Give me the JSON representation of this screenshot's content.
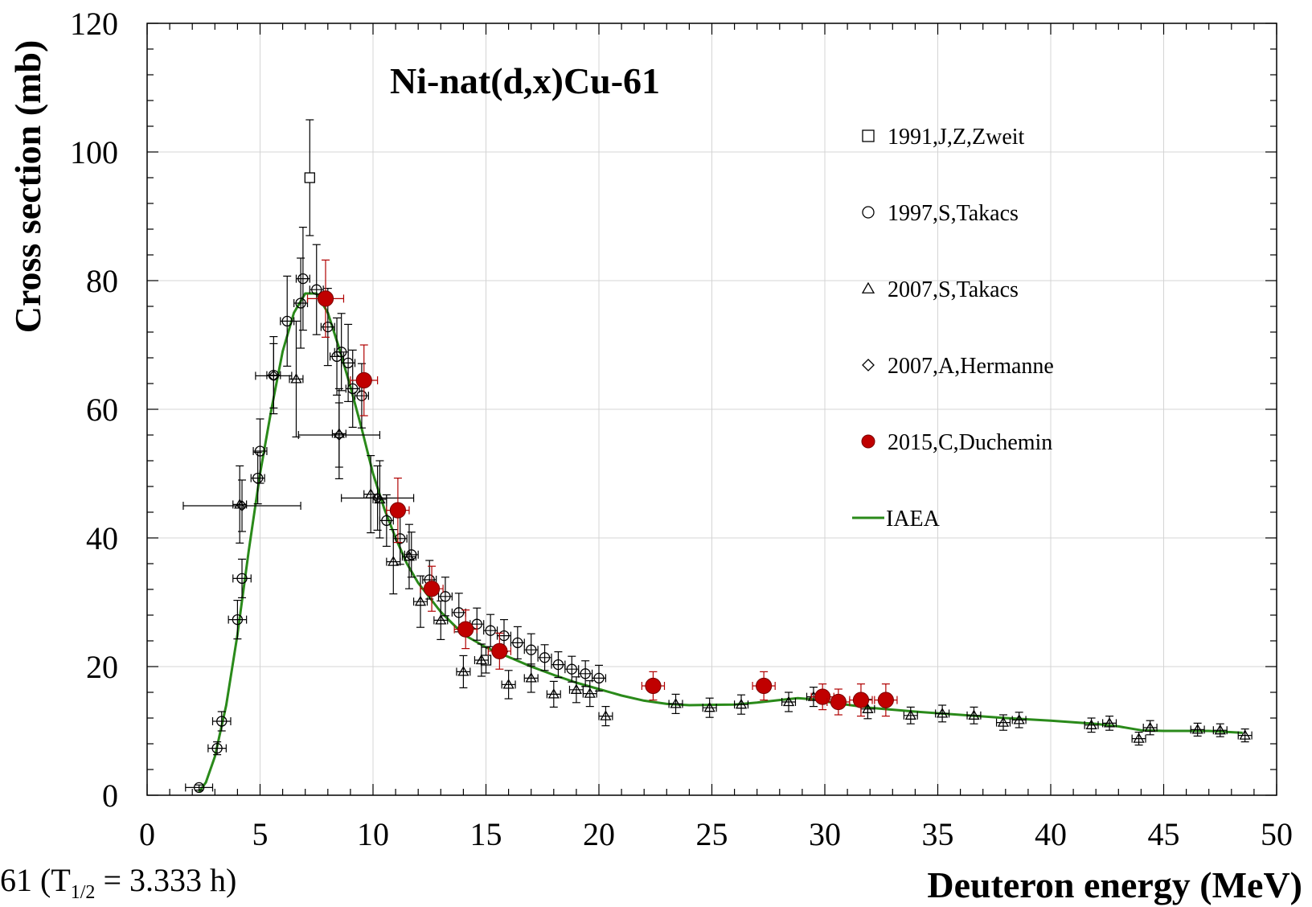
{
  "chart_data": {
    "type": "scatter",
    "title": "Ni-nat(d,x)Cu-61",
    "xlabel": "Deuteron energy (MeV)",
    "ylabel": "Cross section (mb)",
    "xlim": [
      0,
      50
    ],
    "ylim": [
      0,
      120
    ],
    "xticks": [
      "0",
      "5",
      "10",
      "15",
      "20",
      "25",
      "30",
      "35",
      "40",
      "45",
      "50"
    ],
    "yticks": [
      "0",
      "20",
      "40",
      "60",
      "80",
      "100",
      "120"
    ],
    "grid": true,
    "legend_position": "top-right",
    "series": [
      {
        "name": "1991,J,Z,Zweit",
        "marker": "square",
        "color": "#000000",
        "points": [
          {
            "x": 7.2,
            "y": 96,
            "yerr": 9
          },
          {
            "x": 15.0,
            "y": 21,
            "yerr": 2
          }
        ]
      },
      {
        "name": "1997,S,Takacs",
        "marker": "circle",
        "color": "#000000",
        "points": [
          {
            "x": 2.3,
            "y": 1.2,
            "xerr": 0.6,
            "yerr": 0.4
          },
          {
            "x": 3.1,
            "y": 7.3,
            "xerr": 0.4,
            "yerr": 1
          },
          {
            "x": 3.3,
            "y": 11.5,
            "xerr": 0.4,
            "yerr": 1.5
          },
          {
            "x": 4.0,
            "y": 27.3,
            "xerr": 0.4,
            "yerr": 3
          },
          {
            "x": 4.2,
            "y": 33.7,
            "xerr": 0.4,
            "yerr": 3
          },
          {
            "x": 4.9,
            "y": 49.3,
            "xerr": 0.3,
            "yerr": 4
          },
          {
            "x": 5.0,
            "y": 53.5,
            "xerr": 0.3,
            "yerr": 5
          },
          {
            "x": 5.6,
            "y": 65.3,
            "xerr": 0.3,
            "yerr": 6
          },
          {
            "x": 6.2,
            "y": 73.7,
            "xerr": 0.3,
            "yerr": 7
          },
          {
            "x": 6.8,
            "y": 76.5,
            "xerr": 0.3,
            "yerr": 7
          },
          {
            "x": 6.9,
            "y": 80.3,
            "xerr": 0.3,
            "yerr": 8
          },
          {
            "x": 7.5,
            "y": 78.6,
            "xerr": 0.3,
            "yerr": 7
          },
          {
            "x": 8.0,
            "y": 72.8,
            "xerr": 0.3,
            "yerr": 6
          },
          {
            "x": 8.4,
            "y": 68.2,
            "xerr": 0.3,
            "yerr": 6
          },
          {
            "x": 8.6,
            "y": 68.9,
            "xerr": 0.3,
            "yerr": 6
          },
          {
            "x": 8.9,
            "y": 67.2,
            "xerr": 0.3,
            "yerr": 6
          },
          {
            "x": 9.1,
            "y": 63.2,
            "xerr": 0.3,
            "yerr": 6
          },
          {
            "x": 9.5,
            "y": 62.1,
            "xerr": 0.3,
            "yerr": 5
          },
          {
            "x": 10.6,
            "y": 42.7,
            "xerr": 0.3,
            "yerr": 4
          },
          {
            "x": 11.2,
            "y": 39.9,
            "xerr": 0.3,
            "yerr": 4
          },
          {
            "x": 11.7,
            "y": 37.4,
            "xerr": 0.3,
            "yerr": 3.5
          },
          {
            "x": 12.5,
            "y": 33.5,
            "xerr": 0.3,
            "yerr": 3
          },
          {
            "x": 13.2,
            "y": 30.9,
            "xerr": 0.3,
            "yerr": 3
          },
          {
            "x": 13.8,
            "y": 28.4,
            "xerr": 0.3,
            "yerr": 3
          },
          {
            "x": 14.6,
            "y": 26.6,
            "xerr": 0.3,
            "yerr": 2.5
          },
          {
            "x": 15.2,
            "y": 25.6,
            "xerr": 0.3,
            "yerr": 2.5
          },
          {
            "x": 15.8,
            "y": 24.8,
            "xerr": 0.3,
            "yerr": 2.5
          },
          {
            "x": 16.4,
            "y": 23.7,
            "xerr": 0.3,
            "yerr": 2.5
          },
          {
            "x": 17.0,
            "y": 22.6,
            "xerr": 0.3,
            "yerr": 2.5
          },
          {
            "x": 17.6,
            "y": 21.4,
            "xerr": 0.3,
            "yerr": 2
          },
          {
            "x": 18.2,
            "y": 20.3,
            "xerr": 0.3,
            "yerr": 2
          },
          {
            "x": 18.8,
            "y": 19.6,
            "xerr": 0.3,
            "yerr": 2
          },
          {
            "x": 19.4,
            "y": 18.9,
            "xerr": 0.3,
            "yerr": 2
          },
          {
            "x": 20.0,
            "y": 18.2,
            "xerr": 0.3,
            "yerr": 2
          }
        ]
      },
      {
        "name": "2007,S,Takacs",
        "marker": "triangle",
        "color": "#000000",
        "points": [
          {
            "x": 4.1,
            "y": 45.2,
            "xerr": 0.3,
            "yerr": 6
          },
          {
            "x": 6.6,
            "y": 64.7,
            "xerr": 0.3,
            "yerr": 9
          },
          {
            "x": 8.5,
            "y": 56.2,
            "xerr": 0.3,
            "yerr": 7
          },
          {
            "x": 9.9,
            "y": 46.8,
            "xerr": 0.3,
            "yerr": 6
          },
          {
            "x": 10.3,
            "y": 46.0,
            "xerr": 0.3,
            "yerr": 6
          },
          {
            "x": 10.9,
            "y": 36.3,
            "xerr": 0.3,
            "yerr": 5
          },
          {
            "x": 11.6,
            "y": 37.1,
            "xerr": 0.3,
            "yerr": 5
          },
          {
            "x": 12.1,
            "y": 30.1,
            "xerr": 0.3,
            "yerr": 4
          },
          {
            "x": 13.0,
            "y": 27.2,
            "xerr": 0.3,
            "yerr": 3
          },
          {
            "x": 14.0,
            "y": 19.2,
            "xerr": 0.3,
            "yerr": 2.5
          },
          {
            "x": 14.8,
            "y": 21.0,
            "xerr": 0.3,
            "yerr": 2.5
          },
          {
            "x": 16.0,
            "y": 17.2,
            "xerr": 0.3,
            "yerr": 2.2
          },
          {
            "x": 17.0,
            "y": 18.2,
            "xerr": 0.3,
            "yerr": 2.2
          },
          {
            "x": 18.0,
            "y": 15.7,
            "xerr": 0.3,
            "yerr": 2
          },
          {
            "x": 19.0,
            "y": 16.4,
            "xerr": 0.3,
            "yerr": 2
          },
          {
            "x": 19.6,
            "y": 15.8,
            "xerr": 0.3,
            "yerr": 2
          },
          {
            "x": 20.3,
            "y": 12.3,
            "xerr": 0.3,
            "yerr": 1.5
          },
          {
            "x": 23.4,
            "y": 14.2,
            "xerr": 0.3,
            "yerr": 1.5
          },
          {
            "x": 24.9,
            "y": 13.6,
            "xerr": 0.3,
            "yerr": 1.5
          },
          {
            "x": 26.3,
            "y": 14.1,
            "xerr": 0.3,
            "yerr": 1.5
          },
          {
            "x": 28.4,
            "y": 14.5,
            "xerr": 0.3,
            "yerr": 1.5
          },
          {
            "x": 29.5,
            "y": 15.3,
            "xerr": 0.3,
            "yerr": 1.5
          },
          {
            "x": 31.9,
            "y": 13.4,
            "xerr": 0.3,
            "yerr": 1.5
          },
          {
            "x": 33.8,
            "y": 12.4,
            "xerr": 0.3,
            "yerr": 1.3
          },
          {
            "x": 35.2,
            "y": 12.7,
            "xerr": 0.3,
            "yerr": 1.3
          },
          {
            "x": 36.6,
            "y": 12.4,
            "xerr": 0.3,
            "yerr": 1.3
          },
          {
            "x": 37.9,
            "y": 11.3,
            "xerr": 0.3,
            "yerr": 1.2
          },
          {
            "x": 38.6,
            "y": 11.7,
            "xerr": 0.3,
            "yerr": 1.2
          },
          {
            "x": 41.8,
            "y": 10.9,
            "xerr": 0.3,
            "yerr": 1.1
          },
          {
            "x": 42.6,
            "y": 11.2,
            "xerr": 0.3,
            "yerr": 1.1
          },
          {
            "x": 43.9,
            "y": 8.8,
            "xerr": 0.3,
            "yerr": 1.0
          },
          {
            "x": 44.4,
            "y": 10.5,
            "xerr": 0.3,
            "yerr": 1.1
          },
          {
            "x": 46.5,
            "y": 10.2,
            "xerr": 0.3,
            "yerr": 1.0
          },
          {
            "x": 47.5,
            "y": 10.1,
            "xerr": 0.3,
            "yerr": 1.0
          },
          {
            "x": 48.6,
            "y": 9.3,
            "xerr": 0.3,
            "yerr": 1.0
          }
        ]
      },
      {
        "name": "2007,A,Hermanne",
        "marker": "diamond",
        "color": "#000000",
        "points": [
          {
            "x": 5.6,
            "y": 65.2,
            "xerr": 0.8,
            "yerr": 5
          },
          {
            "x": 8.5,
            "y": 56.0,
            "xerr": 1.8,
            "yerr": 5
          },
          {
            "x": 10.2,
            "y": 46.2,
            "xerr": 1.6,
            "yerr": 5
          },
          {
            "x": 4.2,
            "y": 45.0,
            "xerr": 2.6,
            "yerr": 4
          }
        ]
      },
      {
        "name": "2015,C,Duchemin",
        "marker": "filled-circle",
        "color": "#c00000",
        "points": [
          {
            "x": 7.9,
            "y": 77.2,
            "xerr": 0.8,
            "yerr": 6
          },
          {
            "x": 9.6,
            "y": 64.5,
            "xerr": 0.6,
            "yerr": 5.5
          },
          {
            "x": 11.1,
            "y": 44.3,
            "xerr": 0.5,
            "yerr": 5
          },
          {
            "x": 12.6,
            "y": 32.1,
            "xerr": 0.5,
            "yerr": 3.5
          },
          {
            "x": 14.1,
            "y": 25.8,
            "xerr": 0.5,
            "yerr": 3
          },
          {
            "x": 15.6,
            "y": 22.4,
            "xerr": 0.5,
            "yerr": 2.8
          },
          {
            "x": 22.4,
            "y": 17.0,
            "xerr": 0.5,
            "yerr": 2.2
          },
          {
            "x": 27.3,
            "y": 17.0,
            "xerr": 0.5,
            "yerr": 2.2
          },
          {
            "x": 29.9,
            "y": 15.3,
            "xerr": 0.5,
            "yerr": 2
          },
          {
            "x": 30.6,
            "y": 14.5,
            "xerr": 0.5,
            "yerr": 2
          },
          {
            "x": 31.6,
            "y": 14.8,
            "xerr": 0.5,
            "yerr": 2.5
          },
          {
            "x": 32.7,
            "y": 14.8,
            "xerr": 0.5,
            "yerr": 2.5
          }
        ]
      },
      {
        "name": "IAEA",
        "marker": "line",
        "color": "#2a8a1a",
        "points": [
          {
            "x": 2.3,
            "y": 0.5
          },
          {
            "x": 2.6,
            "y": 2
          },
          {
            "x": 3.0,
            "y": 6
          },
          {
            "x": 3.5,
            "y": 14
          },
          {
            "x": 4.0,
            "y": 25
          },
          {
            "x": 4.5,
            "y": 38
          },
          {
            "x": 5.0,
            "y": 50
          },
          {
            "x": 5.5,
            "y": 60
          },
          {
            "x": 6.0,
            "y": 69
          },
          {
            "x": 6.5,
            "y": 75
          },
          {
            "x": 7.0,
            "y": 78
          },
          {
            "x": 7.5,
            "y": 78
          },
          {
            "x": 8.0,
            "y": 75
          },
          {
            "x": 8.5,
            "y": 69.5
          },
          {
            "x": 9.0,
            "y": 63.5
          },
          {
            "x": 9.5,
            "y": 57
          },
          {
            "x": 10.0,
            "y": 50
          },
          {
            "x": 10.5,
            "y": 44.5
          },
          {
            "x": 11.0,
            "y": 40
          },
          {
            "x": 11.5,
            "y": 36
          },
          {
            "x": 12.0,
            "y": 33
          },
          {
            "x": 13.0,
            "y": 28.5
          },
          {
            "x": 14.0,
            "y": 25
          },
          {
            "x": 15.0,
            "y": 23
          },
          {
            "x": 16.0,
            "y": 21.5
          },
          {
            "x": 17.0,
            "y": 20
          },
          {
            "x": 18.0,
            "y": 18.7
          },
          {
            "x": 19.0,
            "y": 17.5
          },
          {
            "x": 20.0,
            "y": 16.5
          },
          {
            "x": 21.0,
            "y": 15.5
          },
          {
            "x": 22.0,
            "y": 14.7
          },
          {
            "x": 23.0,
            "y": 14.2
          },
          {
            "x": 24.0,
            "y": 14.0
          },
          {
            "x": 26.0,
            "y": 14.1
          },
          {
            "x": 27.0,
            "y": 14.4
          },
          {
            "x": 28.0,
            "y": 14.8
          },
          {
            "x": 28.8,
            "y": 15.1
          },
          {
            "x": 29.5,
            "y": 14.9
          },
          {
            "x": 30.5,
            "y": 14.3
          },
          {
            "x": 32.0,
            "y": 13.6
          },
          {
            "x": 34.0,
            "y": 13.0
          },
          {
            "x": 36.0,
            "y": 12.5
          },
          {
            "x": 38.0,
            "y": 12.0
          },
          {
            "x": 40.0,
            "y": 11.6
          },
          {
            "x": 42.0,
            "y": 11.1
          },
          {
            "x": 43.0,
            "y": 10.7
          },
          {
            "x": 44.0,
            "y": 10.1
          },
          {
            "x": 45.0,
            "y": 10.0
          },
          {
            "x": 46.0,
            "y": 10.0
          },
          {
            "x": 47.0,
            "y": 10.0
          },
          {
            "x": 48.5,
            "y": 9.7
          }
        ]
      }
    ]
  },
  "caption": {
    "prefix": "61 (T",
    "subscript": "1/2",
    "suffix": " = 3.333 h)"
  }
}
